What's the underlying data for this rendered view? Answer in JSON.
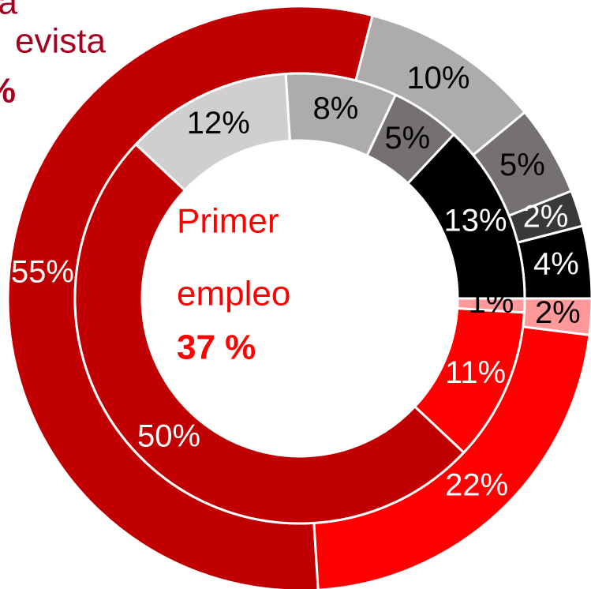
{
  "chart_data": {
    "type": "donut",
    "series": [
      {
        "values": [
          4,
          2,
          5,
          10,
          55,
          22,
          2
        ],
        "value_labels": [
          "4%",
          "2%",
          "5%",
          "10%",
          "55%",
          "22%",
          "2%"
        ],
        "colors": [
          "#000000",
          "#3b3838",
          "#767171",
          "#aeabab",
          "#c00000",
          "#ff0000",
          "#ff9999"
        ],
        "label_colors": [
          "#ffffff",
          "#ffffff",
          "#000000",
          "#000000",
          "#ffffff",
          "#ffffff",
          "#000000"
        ]
      },
      {
        "values": [
          13,
          5,
          8,
          12,
          50,
          11,
          1
        ],
        "value_labels": [
          "13%",
          "5%",
          "8%",
          "12%",
          "50%",
          "11%",
          "1%"
        ],
        "colors": [
          "#000000",
          "#767171",
          "#aeabab",
          "#d0cece",
          "#c00000",
          "#ff0000",
          "#ff9999"
        ],
        "label_colors": [
          "#ffffff",
          "#000000",
          "#000000",
          "#000000",
          "#ffffff",
          "#ffffff",
          "#000000"
        ]
      }
    ],
    "center_annotation": [
      "Primer",
      "empleo",
      "37 %"
    ],
    "corner_annotation": [
      "a",
      "evista",
      "%"
    ]
  }
}
